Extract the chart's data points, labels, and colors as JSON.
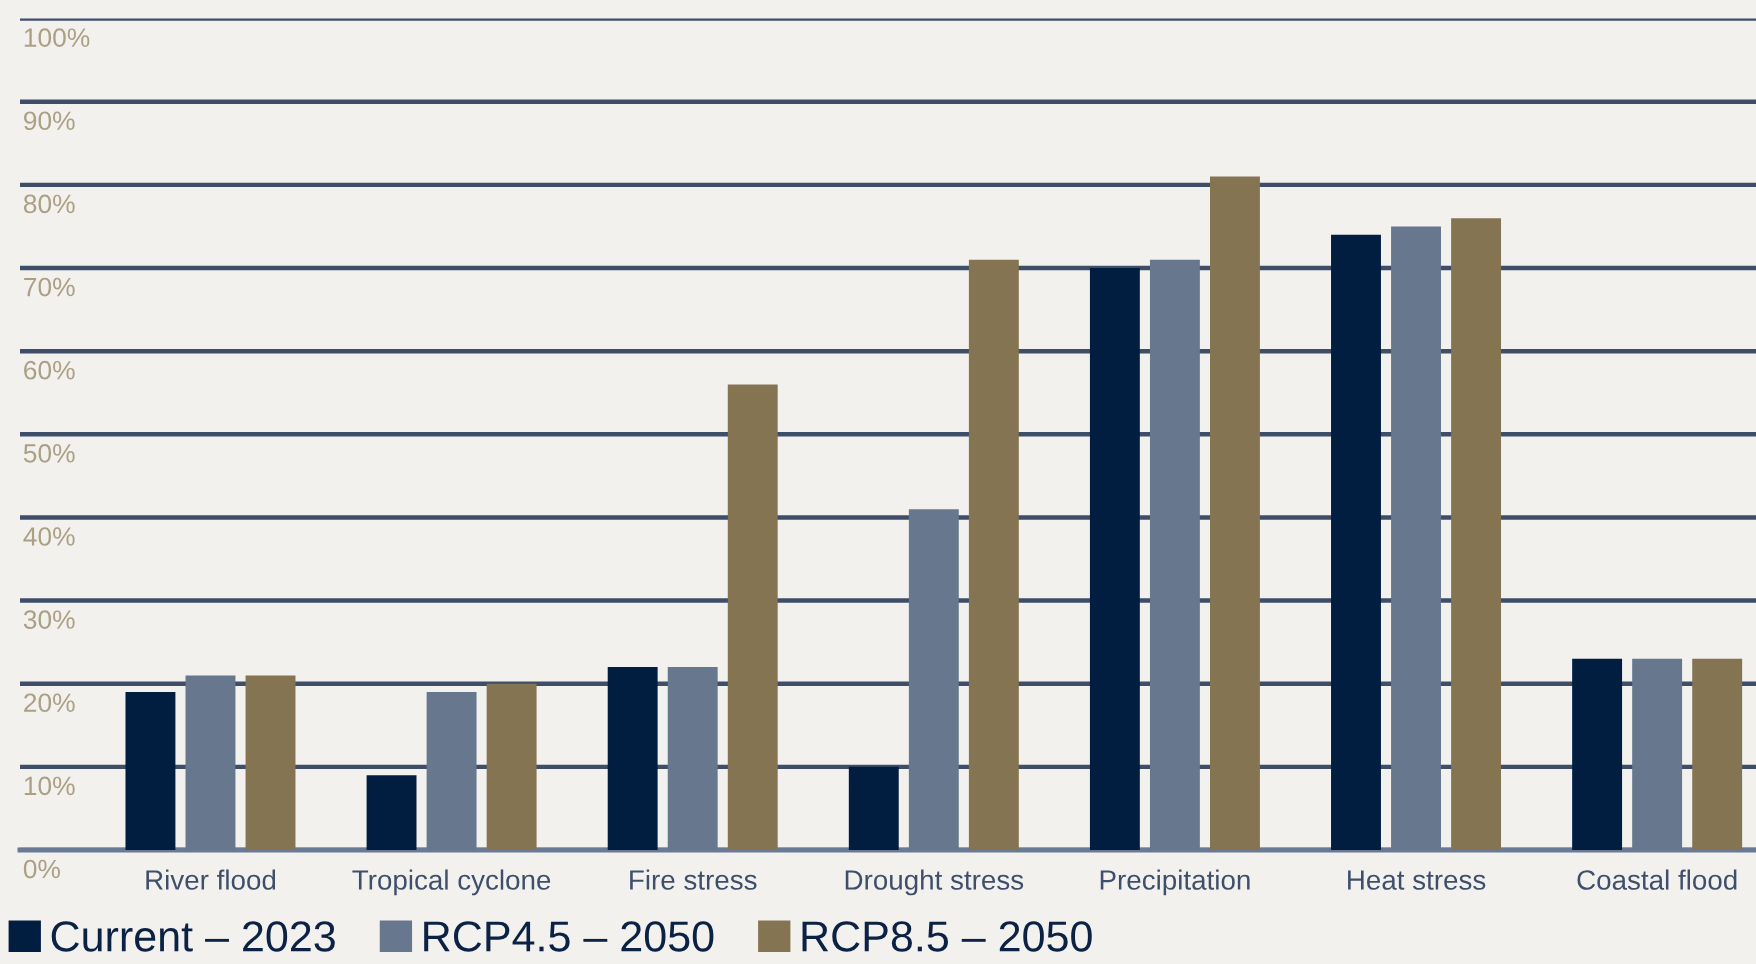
{
  "chart_data": {
    "type": "bar",
    "categories": [
      "River flood",
      "Tropical cyclone",
      "Fire stress",
      "Drought stress",
      "Precipitation",
      "Heat stress",
      "Coastal flood"
    ],
    "series": [
      {
        "name": "Current – 2023",
        "color": "#011e41",
        "values": [
          19,
          9,
          22,
          10,
          70,
          74,
          23
        ]
      },
      {
        "name": "RCP4.5 – 2050",
        "color": "#67778d",
        "values": [
          21,
          19,
          22,
          41,
          71,
          75,
          23
        ]
      },
      {
        "name": "RCP8.5 – 2050",
        "color": "#857451",
        "values": [
          21,
          20,
          56,
          71,
          81,
          76,
          23
        ]
      }
    ],
    "ylim": [
      0,
      100
    ],
    "yticks": [
      {
        "value": 0,
        "label": "0%"
      },
      {
        "value": 10,
        "label": "10%"
      },
      {
        "value": 20,
        "label": "20%"
      },
      {
        "value": 30,
        "label": "30%"
      },
      {
        "value": 40,
        "label": "40%"
      },
      {
        "value": 50,
        "label": "50%"
      },
      {
        "value": 60,
        "label": "60%"
      },
      {
        "value": 70,
        "label": "70%"
      },
      {
        "value": 80,
        "label": "80%"
      },
      {
        "value": 90,
        "label": "90%"
      },
      {
        "value": 100,
        "label": "100%"
      }
    ],
    "grid": "y",
    "legend": "bottom left"
  }
}
